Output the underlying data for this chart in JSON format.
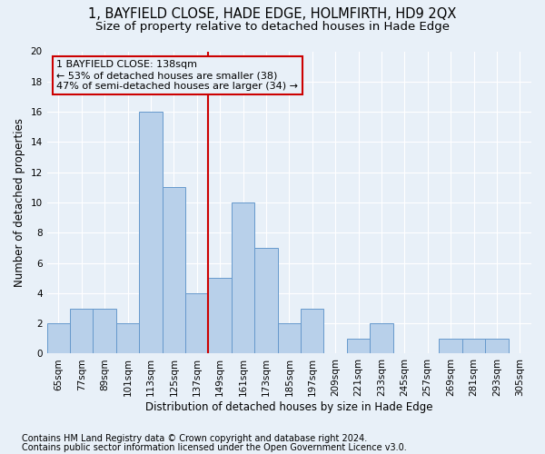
{
  "title": "1, BAYFIELD CLOSE, HADE EDGE, HOLMFIRTH, HD9 2QX",
  "subtitle": "Size of property relative to detached houses in Hade Edge",
  "xlabel": "Distribution of detached houses by size in Hade Edge",
  "ylabel": "Number of detached properties",
  "categories": [
    "65sqm",
    "77sqm",
    "89sqm",
    "101sqm",
    "113sqm",
    "125sqm",
    "137sqm",
    "149sqm",
    "161sqm",
    "173sqm",
    "185sqm",
    "197sqm",
    "209sqm",
    "221sqm",
    "233sqm",
    "245sqm",
    "257sqm",
    "269sqm",
    "281sqm",
    "293sqm",
    "305sqm"
  ],
  "values": [
    2,
    3,
    3,
    2,
    16,
    11,
    4,
    5,
    10,
    7,
    2,
    3,
    0,
    1,
    2,
    0,
    0,
    1,
    1,
    1,
    0
  ],
  "bar_color": "#b8d0ea",
  "bar_edge_color": "#6699cc",
  "property_line_x": 6.5,
  "property_line_label": "1 BAYFIELD CLOSE: 138sqm",
  "annotation_line1": "← 53% of detached houses are smaller (38)",
  "annotation_line2": "47% of semi-detached houses are larger (34) →",
  "annotation_box_color": "#cc0000",
  "ylim": [
    0,
    20
  ],
  "yticks": [
    0,
    2,
    4,
    6,
    8,
    10,
    12,
    14,
    16,
    18,
    20
  ],
  "footnote1": "Contains HM Land Registry data © Crown copyright and database right 2024.",
  "footnote2": "Contains public sector information licensed under the Open Government Licence v3.0.",
  "background_color": "#e8f0f8",
  "grid_color": "#ffffff",
  "title_fontsize": 10.5,
  "subtitle_fontsize": 9.5,
  "axis_label_fontsize": 8.5,
  "tick_fontsize": 7.5,
  "annotation_fontsize": 8,
  "footnote_fontsize": 7
}
